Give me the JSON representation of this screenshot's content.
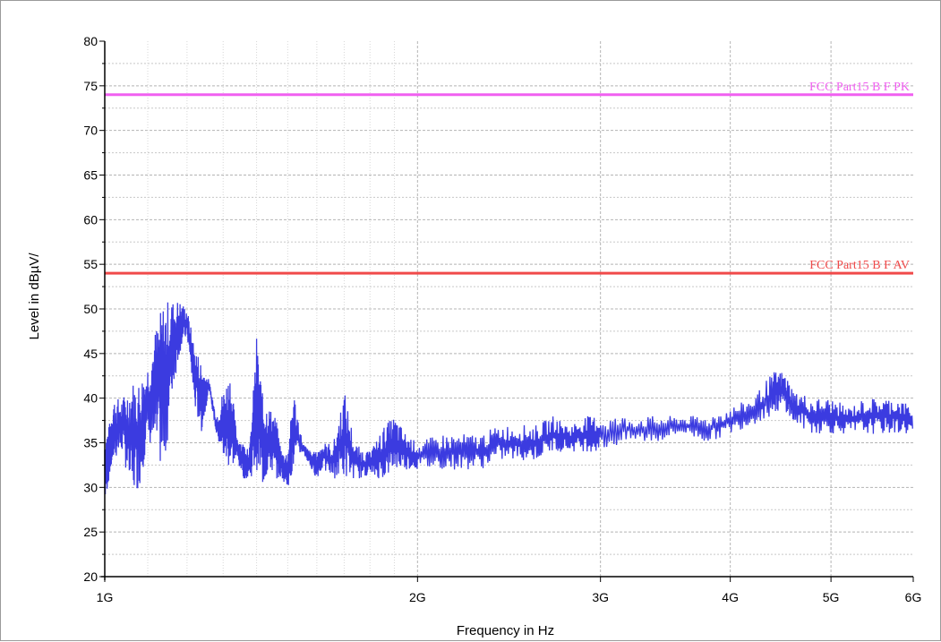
{
  "chart_data": {
    "type": "line",
    "xlabel": "Frequency in Hz",
    "ylabel": "Level in dBµV/",
    "xscale": "log",
    "xlim": [
      1000000000,
      6000000000
    ],
    "ylim": [
      20,
      80
    ],
    "grid": true,
    "y_ticks": [
      "20",
      "25",
      "30",
      "35",
      "40",
      "45",
      "50",
      "55",
      "60",
      "65",
      "70",
      "75",
      "80"
    ],
    "x_ticks": [
      {
        "value": 1000000000,
        "label": "1G"
      },
      {
        "value": 2000000000,
        "label": "2G"
      },
      {
        "value": 3000000000,
        "label": "3G"
      },
      {
        "value": 4000000000,
        "label": "4G"
      },
      {
        "value": 5000000000,
        "label": "5G"
      },
      {
        "value": 6000000000,
        "label": "6G"
      }
    ],
    "limit_lines": [
      {
        "name": "FCC Part15 B F PK",
        "value": 74,
        "color": "#f060f0"
      },
      {
        "name": "FCC Part15 B F AV",
        "value": 54,
        "color": "#f04a4a"
      }
    ],
    "series": [
      {
        "color": "#3b3be0",
        "x_ghz": [
          1.0,
          1.01,
          1.02,
          1.04,
          1.06,
          1.08,
          1.1,
          1.12,
          1.14,
          1.16,
          1.18,
          1.2,
          1.22,
          1.24,
          1.26,
          1.28,
          1.3,
          1.32,
          1.34,
          1.36,
          1.38,
          1.4,
          1.42,
          1.44,
          1.46,
          1.48,
          1.5,
          1.52,
          1.55,
          1.58,
          1.6,
          1.62,
          1.66,
          1.7,
          1.74,
          1.78,
          1.8,
          1.82,
          1.86,
          1.9,
          1.95,
          2.0,
          2.1,
          2.2,
          2.3,
          2.4,
          2.5,
          2.6,
          2.7,
          2.8,
          2.9,
          3.0,
          3.2,
          3.4,
          3.6,
          3.8,
          4.0,
          4.2,
          4.4,
          4.5,
          4.6,
          4.8,
          5.0,
          5.2,
          5.4,
          5.6,
          5.8,
          6.0
        ],
        "min": [
          28,
          31,
          33,
          34,
          29,
          30,
          35,
          34,
          31,
          40,
          45,
          47,
          39,
          36,
          41,
          36,
          33,
          32,
          33,
          31,
          31,
          32,
          30,
          32,
          31,
          31,
          30,
          32,
          34,
          32,
          31,
          32,
          31,
          31,
          31,
          31,
          32,
          31,
          31,
          32,
          32,
          32,
          32,
          32,
          32,
          33,
          33,
          33,
          34,
          34,
          34,
          34,
          35,
          35,
          36,
          35,
          36,
          37,
          38,
          39,
          37,
          36,
          36,
          36,
          36,
          36,
          36,
          36
        ],
        "max": [
          36,
          37,
          40,
          40,
          42,
          42,
          44,
          48,
          51,
          51,
          51,
          50,
          46,
          44,
          42,
          38,
          41,
          43,
          36,
          35,
          35,
          47,
          40,
          39,
          38,
          34,
          34,
          41,
          35,
          34,
          34,
          35,
          35,
          41,
          35,
          34,
          34,
          35,
          37,
          38,
          36,
          35,
          36,
          36,
          36,
          37,
          37,
          37,
          38,
          37,
          38,
          38,
          38,
          38,
          38,
          38,
          39,
          40,
          43,
          43,
          41,
          40,
          40,
          39,
          40,
          40,
          40,
          39
        ]
      }
    ]
  }
}
